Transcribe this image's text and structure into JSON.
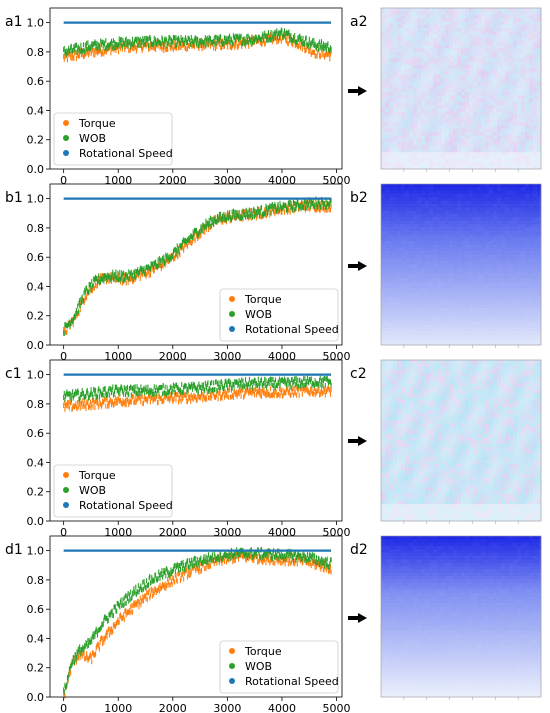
{
  "figure": {
    "arrow_icon": "right-arrow-icon",
    "colors": {
      "torque": "#ff7f0e",
      "wob": "#2ca02c",
      "rotational_speed": "#1f77b4"
    }
  },
  "chart_data": [
    {
      "id": "a1",
      "panel_label": "a1",
      "type": "scatter",
      "xlim": [
        -250,
        5100
      ],
      "ylim": [
        0,
        1.1
      ],
      "xticks": [
        0,
        1000,
        2000,
        3000,
        4000,
        5000
      ],
      "yticks": [
        0.0,
        0.2,
        0.4,
        0.6,
        0.8,
        1.0
      ],
      "legend_placement": "lower-left",
      "series": [
        {
          "name": "Torque",
          "color": "#ff7f0e",
          "x": [
            0,
            500,
            1000,
            1500,
            2000,
            2500,
            3000,
            3500,
            3800,
            4000,
            4300,
            4600,
            4900
          ],
          "y": [
            0.76,
            0.8,
            0.83,
            0.84,
            0.84,
            0.85,
            0.85,
            0.87,
            0.89,
            0.9,
            0.86,
            0.8,
            0.78
          ]
        },
        {
          "name": "WOB",
          "color": "#2ca02c",
          "x": [
            0,
            500,
            1000,
            1500,
            2000,
            2500,
            3000,
            3500,
            3800,
            4000,
            4300,
            4600,
            4900
          ],
          "y": [
            0.8,
            0.84,
            0.86,
            0.87,
            0.87,
            0.87,
            0.88,
            0.89,
            0.91,
            0.93,
            0.89,
            0.85,
            0.83
          ]
        },
        {
          "name": "Rotational Speed",
          "color": "#1f77b4",
          "x": [
            0,
            4900
          ],
          "y": [
            1.0,
            1.0
          ]
        }
      ]
    },
    {
      "id": "b1",
      "panel_label": "b1",
      "type": "scatter",
      "xlim": [
        -250,
        5100
      ],
      "ylim": [
        0,
        1.1
      ],
      "xticks": [
        0,
        1000,
        2000,
        3000,
        4000,
        5000
      ],
      "yticks": [
        0.0,
        0.2,
        0.4,
        0.6,
        0.8,
        1.0
      ],
      "legend_placement": "lower-right",
      "series": [
        {
          "name": "Torque",
          "color": "#ff7f0e",
          "x": [
            0,
            200,
            400,
            600,
            800,
            1000,
            1200,
            1400,
            1600,
            1800,
            2000,
            2200,
            2400,
            2600,
            2800,
            3000,
            3200,
            3400,
            3600,
            3800,
            4000,
            4200,
            4400,
            4600,
            4900
          ],
          "y": [
            0.08,
            0.18,
            0.34,
            0.43,
            0.46,
            0.45,
            0.45,
            0.48,
            0.51,
            0.55,
            0.6,
            0.67,
            0.74,
            0.8,
            0.85,
            0.87,
            0.88,
            0.89,
            0.9,
            0.92,
            0.93,
            0.94,
            0.95,
            0.95,
            0.95
          ]
        },
        {
          "name": "WOB",
          "color": "#2ca02c",
          "x": [
            0,
            200,
            400,
            600,
            800,
            1000,
            1200,
            1400,
            1600,
            1800,
            2000,
            2200,
            2400,
            2600,
            2800,
            3000,
            3200,
            3400,
            3600,
            3800,
            4000,
            4200,
            4400,
            4600,
            4900
          ],
          "y": [
            0.1,
            0.2,
            0.36,
            0.44,
            0.47,
            0.47,
            0.47,
            0.5,
            0.53,
            0.57,
            0.62,
            0.69,
            0.76,
            0.82,
            0.86,
            0.88,
            0.89,
            0.9,
            0.91,
            0.93,
            0.94,
            0.95,
            0.96,
            0.97,
            0.97
          ]
        },
        {
          "name": "Rotational Speed",
          "color": "#1f77b4",
          "x": [
            0,
            4900
          ],
          "y": [
            1.0,
            1.0
          ]
        }
      ]
    },
    {
      "id": "c1",
      "panel_label": "c1",
      "type": "scatter",
      "xlim": [
        -250,
        5100
      ],
      "ylim": [
        0,
        1.1
      ],
      "xticks": [
        0,
        1000,
        2000,
        3000,
        4000,
        5000
      ],
      "yticks": [
        0.0,
        0.2,
        0.4,
        0.6,
        0.8,
        1.0
      ],
      "legend_placement": "lower-left",
      "series": [
        {
          "name": "Torque",
          "color": "#ff7f0e",
          "x": [
            0,
            500,
            1000,
            1500,
            2000,
            2500,
            3000,
            3500,
            4000,
            4500,
            4900
          ],
          "y": [
            0.78,
            0.8,
            0.82,
            0.83,
            0.84,
            0.85,
            0.87,
            0.88,
            0.88,
            0.89,
            0.89
          ]
        },
        {
          "name": "WOB",
          "color": "#2ca02c",
          "x": [
            0,
            500,
            1000,
            1500,
            2000,
            2500,
            3000,
            3500,
            4000,
            4500,
            4900
          ],
          "y": [
            0.85,
            0.87,
            0.89,
            0.89,
            0.9,
            0.91,
            0.93,
            0.94,
            0.94,
            0.95,
            0.95
          ]
        },
        {
          "name": "Rotational Speed",
          "color": "#1f77b4",
          "x": [
            0,
            4900
          ],
          "y": [
            1.0,
            1.0
          ]
        }
      ]
    },
    {
      "id": "d1",
      "panel_label": "d1",
      "type": "scatter",
      "xlim": [
        -250,
        5100
      ],
      "ylim": [
        0,
        1.1
      ],
      "xticks": [
        0,
        1000,
        2000,
        3000,
        4000,
        5000
      ],
      "yticks": [
        0.0,
        0.2,
        0.4,
        0.6,
        0.8,
        1.0
      ],
      "legend_placement": "lower-right",
      "series": [
        {
          "name": "Torque",
          "color": "#ff7f0e",
          "x": [
            0,
            150,
            300,
            400,
            500,
            700,
            1000,
            1300,
            1600,
            2000,
            2400,
            2800,
            3200,
            3600,
            4000,
            4400,
            4700,
            4900
          ],
          "y": [
            0.0,
            0.22,
            0.3,
            0.27,
            0.26,
            0.38,
            0.52,
            0.62,
            0.71,
            0.8,
            0.87,
            0.93,
            0.96,
            0.95,
            0.94,
            0.93,
            0.9,
            0.88
          ]
        },
        {
          "name": "WOB",
          "color": "#2ca02c",
          "x": [
            0,
            150,
            300,
            400,
            500,
            700,
            1000,
            1300,
            1600,
            2000,
            2400,
            2800,
            3200,
            3600,
            4000,
            4400,
            4700,
            4900
          ],
          "y": [
            0.02,
            0.24,
            0.32,
            0.34,
            0.38,
            0.5,
            0.62,
            0.72,
            0.8,
            0.87,
            0.92,
            0.96,
            0.98,
            0.98,
            0.97,
            0.96,
            0.93,
            0.91
          ]
        },
        {
          "name": "Rotational Speed",
          "color": "#1f77b4",
          "x": [
            0,
            4900
          ],
          "y": [
            1.0,
            1.0
          ]
        }
      ]
    },
    {
      "id": "a2",
      "panel_label": "a2",
      "type": "heatmap",
      "style": "faint-mottled",
      "palette": [
        "#c9d6f5",
        "#d8c8ee",
        "#bfe0f5"
      ]
    },
    {
      "id": "b2",
      "panel_label": "b2",
      "type": "heatmap",
      "style": "top-dark-gradient",
      "palette": [
        "#1f2ae6",
        "#6a7bf0",
        "#dfe6fb"
      ]
    },
    {
      "id": "c2",
      "panel_label": "c2",
      "type": "heatmap",
      "style": "light-cyan-mottled",
      "palette": [
        "#b8dcf4",
        "#d5ccef",
        "#a9e0f3"
      ]
    },
    {
      "id": "d2",
      "panel_label": "d2",
      "type": "heatmap",
      "style": "top-dark-gradient",
      "palette": [
        "#1f2ae6",
        "#8090f2",
        "#e9eefc"
      ]
    }
  ]
}
